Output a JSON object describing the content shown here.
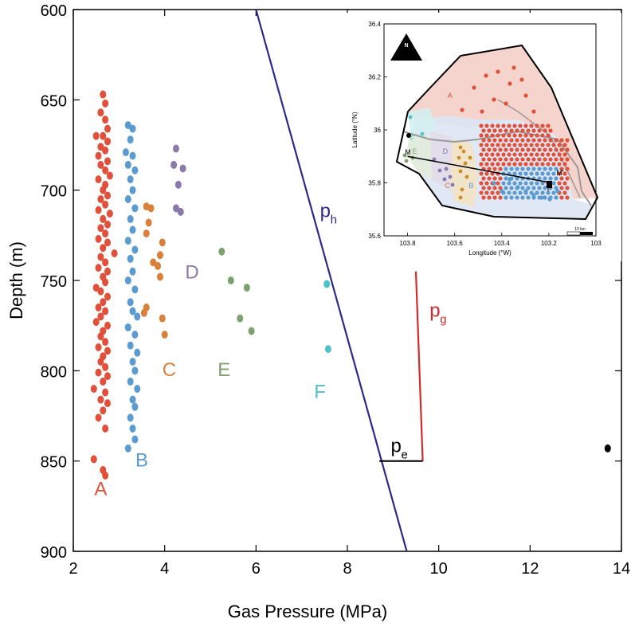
{
  "chart_data": [
    {
      "type": "scatter",
      "title": "",
      "xlabel": "Gas Pressure (MPa)",
      "ylabel": "Depth (m)",
      "xlim": [
        2,
        14
      ],
      "ylim": [
        600,
        900
      ],
      "y_inverted": true,
      "x_ticks": [
        "2",
        "4",
        "6",
        "8",
        "10",
        "12",
        "14"
      ],
      "y_ticks": [
        "600",
        "650",
        "700",
        "750",
        "800",
        "850",
        "900"
      ],
      "grid": false,
      "series": [
        {
          "name": "A",
          "color": "#e0503a",
          "label_position": {
            "x": 2.6,
            "y": 869
          },
          "points": [
            [
              2.65,
              647
            ],
            [
              2.7,
              652
            ],
            [
              2.6,
              657
            ],
            [
              2.7,
              661
            ],
            [
              2.75,
              666
            ],
            [
              2.65,
              670
            ],
            [
              2.5,
              670
            ],
            [
              2.75,
              673
            ],
            [
              2.6,
              676
            ],
            [
              2.7,
              678
            ],
            [
              2.55,
              681
            ],
            [
              2.75,
              684
            ],
            [
              2.6,
              686
            ],
            [
              2.7,
              689
            ],
            [
              2.8,
              692
            ],
            [
              2.55,
              694
            ],
            [
              2.7,
              697
            ],
            [
              2.65,
              700
            ],
            [
              2.75,
              703
            ],
            [
              2.6,
              705
            ],
            [
              2.7,
              708
            ],
            [
              2.55,
              711
            ],
            [
              2.8,
              713
            ],
            [
              2.65,
              716
            ],
            [
              2.75,
              719
            ],
            [
              2.6,
              721
            ],
            [
              2.7,
              724
            ],
            [
              2.55,
              727
            ],
            [
              2.75,
              729
            ],
            [
              2.65,
              732
            ],
            [
              2.9,
              735
            ],
            [
              2.6,
              737
            ],
            [
              2.7,
              740
            ],
            [
              2.55,
              743
            ],
            [
              2.75,
              745
            ],
            [
              2.65,
              748
            ],
            [
              2.5,
              754
            ],
            [
              2.7,
              751
            ],
            [
              2.6,
              756
            ],
            [
              2.75,
              759
            ],
            [
              2.65,
              762
            ],
            [
              2.55,
              765
            ],
            [
              2.7,
              767
            ],
            [
              2.6,
              770
            ],
            [
              2.5,
              773
            ],
            [
              2.75,
              775
            ],
            [
              2.65,
              778
            ],
            [
              2.6,
              781
            ],
            [
              2.7,
              784
            ],
            [
              2.55,
              787
            ],
            [
              2.75,
              789
            ],
            [
              2.65,
              792
            ],
            [
              2.6,
              795
            ],
            [
              2.7,
              798
            ],
            [
              2.55,
              801
            ],
            [
              2.75,
              803
            ],
            [
              2.65,
              806
            ],
            [
              2.45,
              810
            ],
            [
              2.7,
              812
            ],
            [
              2.6,
              816
            ],
            [
              2.75,
              818
            ],
            [
              2.65,
              822
            ],
            [
              2.55,
              826
            ],
            [
              2.7,
              832
            ],
            [
              2.45,
              849
            ],
            [
              2.65,
              855
            ],
            [
              2.7,
              858
            ]
          ]
        },
        {
          "name": "B",
          "color": "#5b9bd0",
          "label_position": {
            "x": 3.5,
            "y": 853
          },
          "points": [
            [
              3.2,
              664
            ],
            [
              3.3,
              666
            ],
            [
              3.25,
              672
            ],
            [
              3.15,
              679
            ],
            [
              3.3,
              681
            ],
            [
              3.2,
              686
            ],
            [
              3.35,
              689
            ],
            [
              3.25,
              694
            ],
            [
              3.3,
              700
            ],
            [
              3.2,
              705
            ],
            [
              3.35,
              710
            ],
            [
              3.25,
              716
            ],
            [
              3.3,
              722
            ],
            [
              3.2,
              728
            ],
            [
              3.35,
              733
            ],
            [
              3.25,
              738
            ],
            [
              3.3,
              745
            ],
            [
              3.2,
              750
            ],
            [
              3.35,
              755
            ],
            [
              3.25,
              762
            ],
            [
              3.3,
              767
            ],
            [
              3.4,
              770
            ],
            [
              3.2,
              776
            ],
            [
              3.35,
              780
            ],
            [
              3.25,
              786
            ],
            [
              3.4,
              790
            ],
            [
              3.3,
              795
            ],
            [
              3.35,
              800
            ],
            [
              3.25,
              806
            ],
            [
              3.4,
              810
            ],
            [
              3.3,
              816
            ],
            [
              3.35,
              820
            ],
            [
              3.25,
              826
            ],
            [
              3.3,
              832
            ],
            [
              3.35,
              838
            ],
            [
              3.2,
              843
            ]
          ]
        },
        {
          "name": "C",
          "color": "#d9803a",
          "label_position": {
            "x": 4.1,
            "y": 803
          },
          "points": [
            [
              3.6,
              709
            ],
            [
              3.7,
              710
            ],
            [
              3.65,
              718
            ],
            [
              3.6,
              724
            ],
            [
              3.95,
              729
            ],
            [
              3.9,
              736
            ],
            [
              3.75,
              740
            ],
            [
              3.85,
              742
            ],
            [
              3.9,
              748
            ],
            [
              3.6,
              765
            ],
            [
              3.55,
              768
            ],
            [
              3.95,
              771
            ],
            [
              4.0,
              780
            ]
          ]
        },
        {
          "name": "D",
          "color": "#8a7aa8",
          "label_position": {
            "x": 4.6,
            "y": 749
          },
          "points": [
            [
              4.25,
              677
            ],
            [
              4.2,
              686
            ],
            [
              4.4,
              688
            ],
            [
              4.3,
              697
            ],
            [
              4.25,
              710
            ],
            [
              4.35,
              712
            ]
          ]
        },
        {
          "name": "E",
          "color": "#7fa070",
          "label_position": {
            "x": 5.3,
            "y": 803
          },
          "points": [
            [
              5.25,
              734
            ],
            [
              5.45,
              750
            ],
            [
              5.8,
              754
            ],
            [
              5.65,
              771
            ],
            [
              5.9,
              778
            ]
          ]
        },
        {
          "name": "F",
          "color": "#4fc4c8",
          "label_position": {
            "x": 7.4,
            "y": 815
          },
          "points": [
            [
              7.55,
              752
            ],
            [
              7.58,
              788
            ]
          ]
        },
        {
          "name": "",
          "color": "#000000",
          "points": [
            [
              13.7,
              843
            ]
          ]
        }
      ],
      "lines": [
        {
          "name": "p_h",
          "label": "p",
          "subscript": "h",
          "color": "#2b2a8a",
          "points": [
            [
              6.0,
              600
            ],
            [
              9.3,
              900
            ]
          ],
          "label_position": {
            "x": 7.4,
            "y": 715
          }
        },
        {
          "name": "p_g",
          "label": "p",
          "subscript": "g",
          "color": "#d32b2b",
          "points": [
            [
              9.65,
              850
            ],
            [
              9.5,
              745
            ]
          ],
          "label_position": {
            "x": 9.8,
            "y": 770
          }
        },
        {
          "name": "p_e",
          "label": "p",
          "subscript": "e",
          "color": "#000000",
          "points": [
            [
              8.7,
              850
            ],
            [
              9.65,
              850
            ]
          ],
          "label_position": {
            "x": 8.95,
            "y": 845
          }
        }
      ]
    },
    {
      "type": "scatter",
      "title": "",
      "xlabel": "Longitude (°W)",
      "ylabel": "Latitude (°N)",
      "xlim": [
        103.9,
        103.0
      ],
      "ylim": [
        35.6,
        36.4
      ],
      "x_ticks": [
        "103.8",
        "103.6",
        "103.4",
        "103.2",
        "103"
      ],
      "y_ticks": [
        "35.6",
        "35.8",
        "36",
        "36.2",
        "36.4"
      ],
      "north_arrow": "N",
      "scale_bar": "10 km",
      "markers": [
        {
          "label": "M",
          "x": 103.8,
          "y": 35.9
        },
        {
          "label": "M'",
          "x": 103.2,
          "y": 35.82
        },
        {
          "label": "T",
          "x": 103.2,
          "y": 35.79
        }
      ],
      "region_labels": [
        {
          "label": "A",
          "color": "#e0503a",
          "x": 103.62,
          "y": 36.12
        },
        {
          "label": "B",
          "color": "#5b9bd0",
          "x": 103.53,
          "y": 35.78
        },
        {
          "label": "C",
          "color": "#d9803a",
          "x": 103.63,
          "y": 35.78
        },
        {
          "label": "D",
          "color": "#8a7aa8",
          "x": 103.64,
          "y": 35.91
        },
        {
          "label": "E",
          "color": "#7fa070",
          "x": 103.77,
          "y": 35.91
        },
        {
          "label": "F",
          "color": "#4fc4c8",
          "x": 103.78,
          "y": 35.96
        }
      ]
    }
  ]
}
